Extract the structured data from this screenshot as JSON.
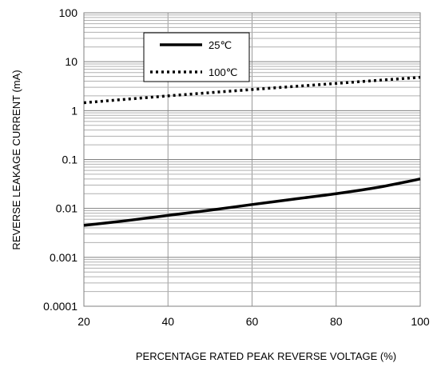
{
  "chart_data": {
    "type": "line",
    "xlabel": "PERCENTAGE RATED PEAK REVERSE VOLTAGE (%)",
    "ylabel": "REVERSE LEAKAGE CURRENT (mA)",
    "x_scale": "linear",
    "y_scale": "log",
    "xlim": [
      20,
      100
    ],
    "ylim": [
      0.0001,
      100
    ],
    "x_ticks": [
      20,
      40,
      60,
      80,
      100
    ],
    "x_tick_labels": [
      "20",
      "40",
      "60",
      "80",
      "100"
    ],
    "y_ticks": [
      0.0001,
      0.001,
      0.01,
      0.1,
      1,
      10,
      100
    ],
    "y_tick_labels": [
      "0.0001",
      "0.001",
      "0.01",
      "0.1",
      "1",
      "10",
      "100"
    ],
    "grid": true,
    "legend_position": "top-center",
    "series": [
      {
        "name": "25℃",
        "style": "solid",
        "color": "#000000",
        "x": [
          20,
          30,
          40,
          50,
          60,
          70,
          80,
          90,
          100
        ],
        "y": [
          0.0045,
          0.0056,
          0.0072,
          0.0092,
          0.012,
          0.0155,
          0.02,
          0.027,
          0.04
        ]
      },
      {
        "name": "100℃",
        "style": "dotted",
        "color": "#000000",
        "x": [
          20,
          40,
          60,
          80,
          100
        ],
        "y": [
          1.45,
          2.0,
          2.7,
          3.6,
          4.8
        ]
      }
    ]
  }
}
